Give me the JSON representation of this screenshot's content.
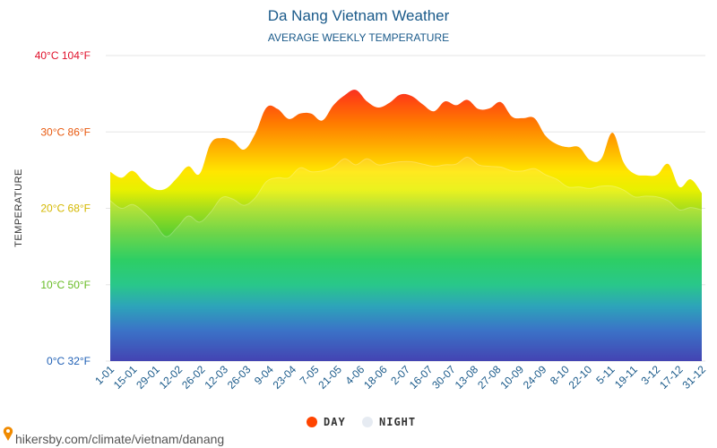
{
  "chart_data": {
    "type": "area",
    "title": "Da Nang Vietnam Weather",
    "subtitle": "AVERAGE WEEKLY TEMPERATURE",
    "ylabel": "TEMPERATURE",
    "ylim": [
      0,
      40
    ],
    "yticks": [
      {
        "value": 0,
        "label": "0°C 32°F",
        "color": "#1e5fb5"
      },
      {
        "value": 10,
        "label": "10°C 50°F",
        "color": "#66bb22"
      },
      {
        "value": 20,
        "label": "20°C 68°F",
        "color": "#d4b800"
      },
      {
        "value": 30,
        "label": "30°C 86°F",
        "color": "#e85a10"
      },
      {
        "value": 40,
        "label": "40°C 104°F",
        "color": "#e0102a"
      }
    ],
    "xtick_labels": [
      "1-01",
      "15-01",
      "29-01",
      "12-02",
      "26-02",
      "12-03",
      "26-03",
      "9-04",
      "23-04",
      "7-05",
      "21-05",
      "4-06",
      "18-06",
      "2-07",
      "16-07",
      "30-07",
      "13-08",
      "27-08",
      "10-09",
      "24-09",
      "8-10",
      "22-10",
      "5-11",
      "19-11",
      "3-12",
      "17-12",
      "31-12"
    ],
    "series": [
      {
        "name": "DAY",
        "color": "#ff4400",
        "values": [
          24.8,
          24.0,
          24.9,
          23.5,
          22.5,
          22.6,
          24.0,
          25.5,
          24.5,
          28.5,
          29.2,
          28.8,
          27.7,
          29.8,
          33.2,
          33.0,
          31.7,
          32.4,
          32.4,
          31.5,
          33.5,
          34.8,
          35.5,
          34.0,
          33.2,
          33.8,
          34.9,
          34.7,
          33.6,
          32.7,
          34.0,
          33.5,
          34.2,
          33.0,
          33.1,
          33.9,
          32.0,
          31.8,
          31.8,
          29.5,
          28.4,
          28.0,
          28.0,
          26.3,
          26.5,
          29.9,
          26.0,
          24.5,
          24.3,
          24.4,
          25.8,
          22.8,
          23.8,
          22.0
        ]
      },
      {
        "name": "NIGHT",
        "color": "#e6ebf2",
        "values": [
          21.0,
          20.0,
          20.5,
          19.5,
          18.0,
          16.3,
          17.5,
          19.0,
          18.2,
          19.5,
          21.4,
          21.2,
          20.4,
          21.4,
          23.5,
          24.0,
          24.0,
          25.3,
          24.8,
          24.9,
          25.4,
          26.5,
          25.7,
          26.5,
          25.7,
          25.9,
          26.1,
          26.1,
          25.8,
          25.5,
          25.7,
          25.8,
          26.7,
          25.7,
          25.5,
          25.4,
          24.9,
          24.9,
          25.2,
          24.4,
          23.8,
          22.8,
          22.8,
          22.6,
          22.9,
          22.9,
          22.4,
          21.5,
          21.6,
          21.5,
          21.0,
          19.8,
          20.1,
          19.8
        ]
      }
    ],
    "legend": "bottom-center"
  },
  "source": {
    "text": "hikersby.com/climate/vietnam/danang"
  }
}
